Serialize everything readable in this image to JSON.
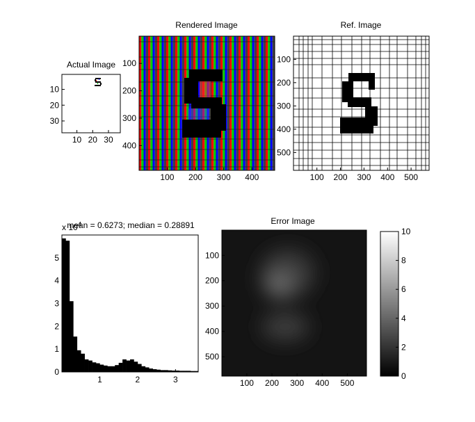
{
  "chart_data": [
    {
      "type": "heatmap",
      "title": "Actual Image",
      "xticks": [
        "10",
        "20",
        "30"
      ],
      "yticks": [
        "10",
        "20",
        "30"
      ],
      "xlim": [
        0.5,
        37.5
      ],
      "ylim": [
        0.5,
        37.5
      ],
      "glyph": "S"
    },
    {
      "type": "heatmap",
      "title": "Rendered Image",
      "xticks": [
        "100",
        "200",
        "300",
        "400"
      ],
      "yticks": [
        "100",
        "200",
        "300",
        "400"
      ],
      "xlim": [
        0.5,
        480.5
      ],
      "ylim": [
        0.5,
        490.5
      ],
      "stripe_colors": [
        "#ff0000",
        "#00cc00",
        "#0000ff",
        "#404040"
      ],
      "glyph_color": "#000000"
    },
    {
      "type": "heatmap",
      "title": "Ref. Image",
      "xticks": [
        "100",
        "200",
        "300",
        "400",
        "500"
      ],
      "yticks": [
        "100",
        "200",
        "300",
        "400",
        "500"
      ],
      "xlim": [
        0.5,
        576.5
      ],
      "ylim": [
        0.5,
        576.5
      ],
      "glyph_color": "#000000"
    },
    {
      "type": "bar",
      "title": "mean = 0.6273; median = 0.28891",
      "exponent_label": "x 10",
      "exponent_power": "4",
      "xticks": [
        "1",
        "2",
        "3"
      ],
      "yticks": [
        "0",
        "1",
        "2",
        "3",
        "4",
        "5"
      ],
      "xlim": [
        0,
        3.6
      ],
      "ylim": [
        0,
        6
      ],
      "bin_width": 0.1,
      "values": [
        5.85,
        5.75,
        3.1,
        1.55,
        0.95,
        0.8,
        0.55,
        0.5,
        0.42,
        0.38,
        0.32,
        0.28,
        0.25,
        0.25,
        0.3,
        0.4,
        0.55,
        0.5,
        0.55,
        0.45,
        0.35,
        0.25,
        0.2,
        0.15,
        0.12,
        0.1,
        0.08,
        0.08,
        0.07,
        0.06,
        0.06,
        0.05,
        0.05,
        0.05,
        0.04,
        0.04
      ]
    },
    {
      "type": "heatmap",
      "title": "Error Image",
      "xticks": [
        "100",
        "200",
        "300",
        "400",
        "500"
      ],
      "yticks": [
        "100",
        "200",
        "300",
        "400",
        "500"
      ],
      "xlim": [
        0.5,
        576.5
      ],
      "ylim": [
        0.5,
        576.5
      ],
      "colorbar_ticks": [
        "0",
        "2",
        "4",
        "6",
        "8",
        "10"
      ],
      "colorbar_range": [
        0,
        10
      ]
    }
  ]
}
